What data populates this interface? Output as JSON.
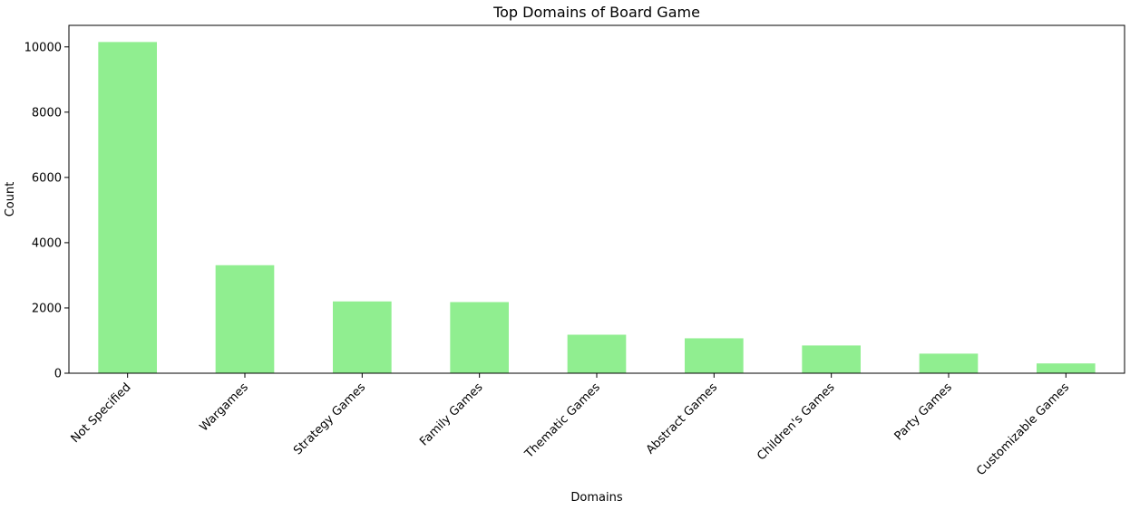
{
  "chart_data": {
    "type": "bar",
    "title": "Top Domains of Board Game",
    "xlabel": "Domains",
    "ylabel": "Count",
    "categories": [
      "Not Specified",
      "Wargames",
      "Strategy Games",
      "Family Games",
      "Thematic Games",
      "Abstract Games",
      "Children's Games",
      "Party Games",
      "Customizable Games"
    ],
    "values": [
      10150,
      3310,
      2200,
      2180,
      1180,
      1070,
      850,
      600,
      300
    ],
    "ylim": [
      0,
      10660
    ],
    "yticks": [
      0,
      2000,
      4000,
      6000,
      8000,
      10000
    ],
    "ytick_labels": [
      "0",
      "2000",
      "4000",
      "6000",
      "8000",
      "10000"
    ],
    "bar_color": "#90ee90",
    "grid": false,
    "legend": "none"
  }
}
